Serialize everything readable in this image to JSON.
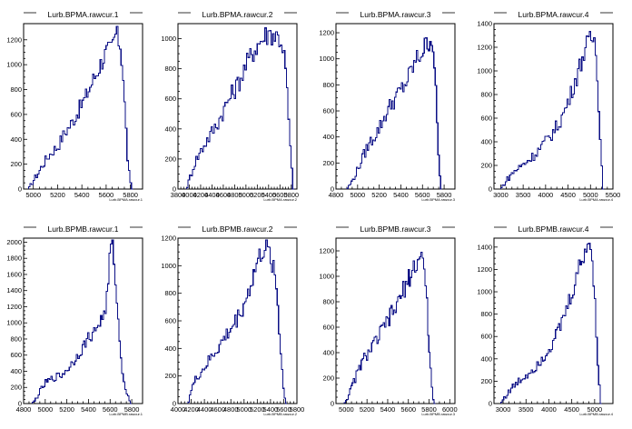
{
  "chart_data": [
    {
      "type": "area",
      "title": "Lurb.BPMA.rawcur.1",
      "xlabel": "Lurb.BPMA.rawcur.1",
      "xlim": [
        4920,
        5900
      ],
      "ylim": [
        0,
        1330
      ],
      "xticks": [
        5000,
        5200,
        5400,
        5600,
        5800
      ],
      "yticks": [
        0,
        200,
        400,
        600,
        800,
        1000,
        1200
      ],
      "x": [
        4960,
        5000,
        5040,
        5080,
        5120,
        5160,
        5200,
        5240,
        5280,
        5320,
        5360,
        5400,
        5440,
        5480,
        5520,
        5560,
        5600,
        5640,
        5680,
        5700,
        5720,
        5740,
        5760,
        5780,
        5800,
        5820
      ],
      "y": [
        0,
        70,
        130,
        200,
        260,
        310,
        340,
        420,
        480,
        540,
        610,
        680,
        760,
        850,
        930,
        1020,
        1100,
        1120,
        1250,
        1200,
        1150,
        900,
        550,
        200,
        40,
        0
      ]
    },
    {
      "type": "area",
      "title": "Lurb.BPMA.rawcur.2",
      "xlabel": "Lurb.BPMA.rawcur.2",
      "xlim": [
        3800,
        5900
      ],
      "ylim": [
        0,
        1100
      ],
      "xticks": [
        3800,
        4000,
        4200,
        4400,
        4600,
        4800,
        5000,
        5200,
        5400,
        5600,
        5800
      ],
      "yticks": [
        0,
        200,
        400,
        600,
        800,
        1000
      ],
      "x": [
        3950,
        4000,
        4100,
        4200,
        4300,
        4400,
        4500,
        4600,
        4700,
        4800,
        4900,
        5000,
        5100,
        5200,
        5300,
        5400,
        5500,
        5600,
        5650,
        5700,
        5750,
        5800,
        5850
      ],
      "y": [
        0,
        60,
        180,
        250,
        320,
        380,
        440,
        520,
        600,
        660,
        730,
        820,
        900,
        960,
        1000,
        1040,
        1030,
        1000,
        950,
        800,
        500,
        150,
        0
      ]
    },
    {
      "type": "area",
      "title": "Lurb.BPMA.rawcur.3",
      "xlabel": "Lurb.BPMA.rawcur.3",
      "xlim": [
        4800,
        5900
      ],
      "ylim": [
        0,
        1270
      ],
      "xticks": [
        4800,
        5000,
        5200,
        5400,
        5600,
        5800
      ],
      "yticks": [
        0,
        200,
        400,
        600,
        800,
        1000,
        1200
      ],
      "x": [
        4900,
        4950,
        5000,
        5050,
        5100,
        5150,
        5200,
        5250,
        5300,
        5350,
        5400,
        5450,
        5500,
        5550,
        5600,
        5650,
        5680,
        5700,
        5720,
        5740,
        5760,
        5780
      ],
      "y": [
        0,
        60,
        150,
        250,
        340,
        400,
        470,
        560,
        640,
        700,
        760,
        820,
        920,
        1000,
        1060,
        1130,
        1160,
        1100,
        800,
        400,
        100,
        0
      ]
    },
    {
      "type": "area",
      "title": "Lurb.BPMA.rawcur.4",
      "xlabel": "Lurb.BPMA.rawcur.4",
      "xlim": [
        2850,
        5500
      ],
      "ylim": [
        0,
        1400
      ],
      "xticks": [
        3000,
        3500,
        4000,
        4500,
        5000,
        5500
      ],
      "yticks": [
        0,
        200,
        400,
        600,
        800,
        1000,
        1200,
        1400
      ],
      "x": [
        3000,
        3100,
        3200,
        3300,
        3400,
        3500,
        3600,
        3700,
        3800,
        3900,
        4000,
        4100,
        4200,
        4300,
        4400,
        4500,
        4600,
        4700,
        4800,
        4900,
        5000,
        5050,
        5100,
        5150,
        5200,
        5250,
        5300
      ],
      "y": [
        0,
        60,
        110,
        150,
        180,
        210,
        240,
        270,
        310,
        360,
        400,
        450,
        500,
        560,
        640,
        740,
        850,
        960,
        1090,
        1200,
        1260,
        1280,
        1250,
        1000,
        600,
        200,
        0
      ]
    },
    {
      "type": "area",
      "title": "Lurb.BPMB.rawcur.1",
      "xlabel": "Lurb.BPMB.rawcur.1",
      "xlim": [
        4800,
        5900
      ],
      "ylim": [
        0,
        2050
      ],
      "xticks": [
        4800,
        5000,
        5200,
        5400,
        5600,
        5800
      ],
      "yticks": [
        0,
        200,
        400,
        600,
        800,
        1000,
        1200,
        1400,
        1600,
        1800,
        2000
      ],
      "x": [
        4880,
        4900,
        4950,
        5000,
        5050,
        5100,
        5150,
        5200,
        5250,
        5300,
        5350,
        5400,
        5450,
        5500,
        5550,
        5580,
        5600,
        5620,
        5640,
        5660,
        5680,
        5700,
        5720,
        5740,
        5760,
        5780,
        5800
      ],
      "y": [
        0,
        30,
        150,
        250,
        300,
        330,
        350,
        420,
        500,
        600,
        700,
        820,
        880,
        1000,
        1120,
        1400,
        1900,
        1950,
        1750,
        1300,
        900,
        600,
        350,
        200,
        100,
        40,
        0
      ]
    },
    {
      "type": "area",
      "title": "Lurb.BPMB.rawcur.2",
      "xlabel": "Lurb.BPMB.rawcur.2",
      "xlim": [
        4000,
        5800
      ],
      "ylim": [
        0,
        1200
      ],
      "xticks": [
        4000,
        4200,
        4400,
        4600,
        4800,
        5000,
        5200,
        5400,
        5600,
        5800
      ],
      "yticks": [
        0,
        200,
        400,
        600,
        800,
        1000,
        1200
      ],
      "x": [
        4150,
        4200,
        4300,
        4400,
        4500,
        4600,
        4700,
        4800,
        4900,
        5000,
        5100,
        5150,
        5200,
        5250,
        5300,
        5350,
        5400,
        5450,
        5500,
        5550,
        5600,
        5650
      ],
      "y": [
        0,
        100,
        200,
        260,
        330,
        400,
        470,
        540,
        620,
        720,
        860,
        940,
        1020,
        1080,
        1120,
        1100,
        1060,
        1000,
        800,
        400,
        80,
        0
      ]
    },
    {
      "type": "area",
      "title": "Lurb.BPMB.rawcur.3",
      "xlabel": "Lurb.BPMB.rawcur.3",
      "xlim": [
        4900,
        6050
      ],
      "ylim": [
        0,
        1300
      ],
      "xticks": [
        5000,
        5200,
        5400,
        5600,
        5800,
        6000
      ],
      "yticks": [
        0,
        200,
        400,
        600,
        800,
        1000,
        1200
      ],
      "x": [
        4980,
        5000,
        5050,
        5100,
        5150,
        5200,
        5250,
        5300,
        5350,
        5400,
        5450,
        5500,
        5550,
        5600,
        5650,
        5700,
        5720,
        5740,
        5760,
        5780,
        5800,
        5820,
        5840,
        5860
      ],
      "y": [
        0,
        30,
        120,
        230,
        320,
        390,
        440,
        510,
        580,
        650,
        720,
        790,
        880,
        980,
        1060,
        1130,
        1180,
        1130,
        1000,
        750,
        450,
        200,
        50,
        0
      ]
    },
    {
      "type": "area",
      "title": "Lurb.BPMB.rawcur.4",
      "xlabel": "Lurb.BPMB.rawcur.4",
      "xlim": [
        2800,
        5400
      ],
      "ylim": [
        0,
        1480
      ],
      "xticks": [
        3000,
        3500,
        4000,
        4500,
        5000
      ],
      "yticks": [
        0,
        200,
        400,
        600,
        800,
        1000,
        1200,
        1400
      ],
      "x": [
        2950,
        3000,
        3100,
        3200,
        3300,
        3400,
        3500,
        3600,
        3700,
        3800,
        3900,
        4000,
        4100,
        4200,
        4300,
        4400,
        4500,
        4600,
        4700,
        4800,
        4850,
        4900,
        4950,
        5000,
        5050,
        5100,
        5150
      ],
      "y": [
        0,
        40,
        90,
        140,
        180,
        220,
        250,
        290,
        330,
        380,
        430,
        490,
        560,
        640,
        740,
        860,
        980,
        1120,
        1260,
        1380,
        1430,
        1400,
        1300,
        1000,
        550,
        150,
        0
      ]
    }
  ]
}
